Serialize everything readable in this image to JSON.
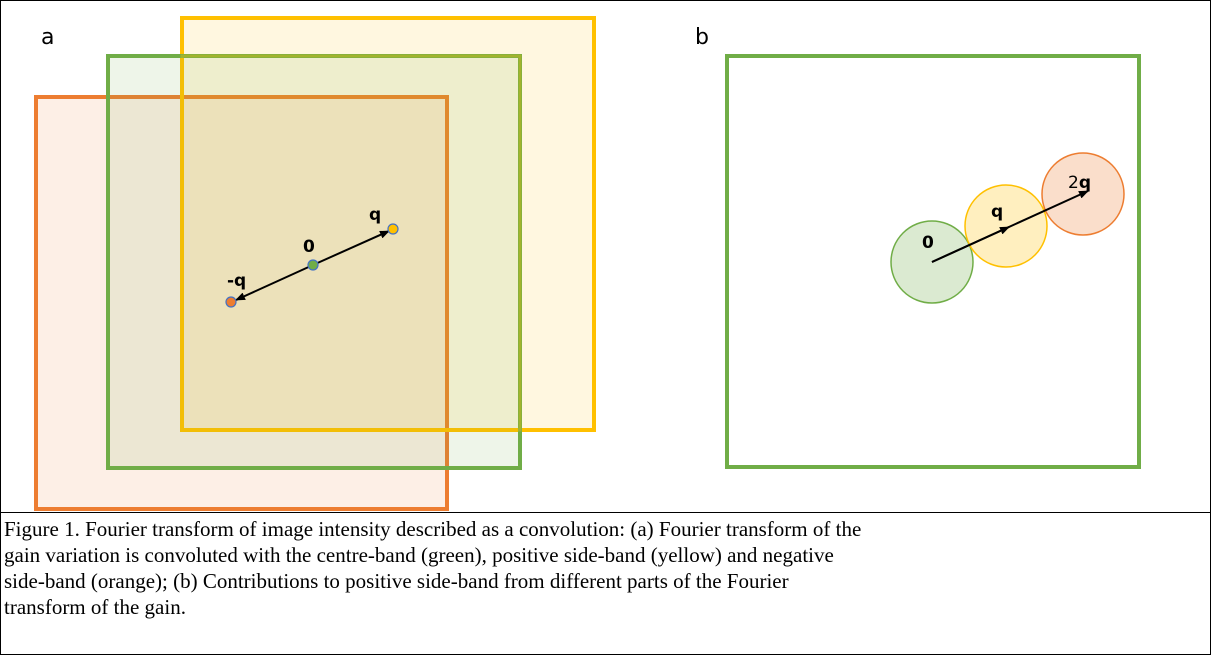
{
  "panels": [
    {
      "label": "a",
      "points": [
        {
          "label": "-q"
        },
        {
          "label": "0"
        },
        {
          "label": "q"
        }
      ]
    },
    {
      "label": "b",
      "points": [
        {
          "label": "0"
        },
        {
          "label": "q"
        },
        {
          "label_parts": [
            "2",
            "q"
          ]
        }
      ]
    }
  ],
  "caption": [
    "Figure 1. Fourier transform of image intensity described as a convolution: (a) Fourier transform of the",
    "gain variation is convoluted with the centre-band (green), positive side-band (yellow) and negative",
    "side-band (orange); (b) Contributions to positive side-band from different parts of the Fourier",
    "transform of the gain."
  ]
}
